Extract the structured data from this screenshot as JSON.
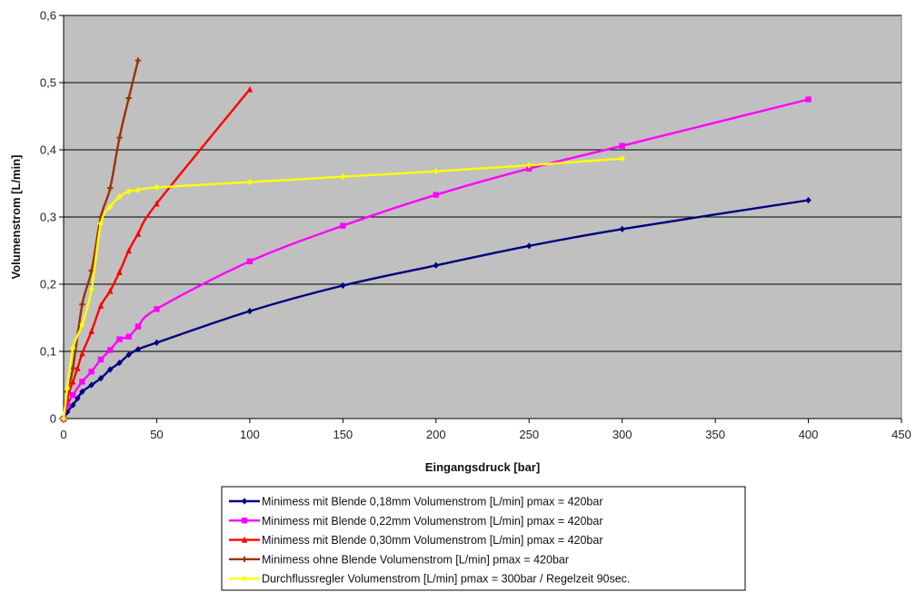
{
  "chart_data": {
    "type": "line",
    "xlabel": "Eingangsdruck [bar]",
    "ylabel": "Volumenstrom [L/min]",
    "xlim": [
      0,
      450
    ],
    "ylim": [
      0,
      0.6
    ],
    "xticks": [
      0,
      50,
      100,
      150,
      200,
      250,
      300,
      350,
      400,
      450
    ],
    "xtick_labels": [
      "0",
      "50",
      "100",
      "150",
      "200",
      "250",
      "300",
      "350",
      "400",
      "450"
    ],
    "yticks": [
      0,
      0.1,
      0.2,
      0.3,
      0.4,
      0.5,
      0.6
    ],
    "ytick_labels": [
      "0",
      "0,1",
      "0,2",
      "0,3",
      "0,4",
      "0,5",
      "0,6"
    ],
    "grid": "horizontal",
    "plot_background": "#c0c0c0",
    "legend_position": "bottom",
    "series": [
      {
        "name": "Minimess mit Blende 0,18mm Volumenstrom [L/min] pmax = 420bar",
        "color": "#000080",
        "marker": "diamond",
        "points": [
          [
            0,
            0
          ],
          [
            2,
            0.01
          ],
          [
            5,
            0.02
          ],
          [
            7.5,
            0.03
          ],
          [
            10,
            0.04
          ],
          [
            15,
            0.05
          ],
          [
            20,
            0.06
          ],
          [
            25,
            0.073
          ],
          [
            30,
            0.083
          ],
          [
            35,
            0.095
          ],
          [
            40,
            0.103
          ],
          [
            50,
            0.113
          ],
          [
            100,
            0.16
          ],
          [
            150,
            0.198
          ],
          [
            200,
            0.228
          ],
          [
            250,
            0.257
          ],
          [
            300,
            0.282
          ],
          [
            400,
            0.325
          ]
        ]
      },
      {
        "name": "Minimess mit Blende 0,22mm Volumenstrom [L/min] pmax = 420bar",
        "color": "#ff00ff",
        "marker": "square",
        "points": [
          [
            0,
            0
          ],
          [
            2,
            0.02
          ],
          [
            5,
            0.035
          ],
          [
            10,
            0.055
          ],
          [
            15,
            0.07
          ],
          [
            20,
            0.088
          ],
          [
            25,
            0.102
          ],
          [
            30,
            0.118
          ],
          [
            35,
            0.122
          ],
          [
            40,
            0.137
          ],
          [
            50,
            0.163
          ],
          [
            100,
            0.234
          ],
          [
            150,
            0.287
          ],
          [
            200,
            0.333
          ],
          [
            250,
            0.372
          ],
          [
            300,
            0.406
          ],
          [
            400,
            0.475
          ]
        ]
      },
      {
        "name": "Minimess mit Blende 0,30mm Volumenstrom [L/min] pmax = 420bar",
        "color": "#ff0000",
        "marker": "triangle",
        "points": [
          [
            0,
            0
          ],
          [
            2,
            0.03
          ],
          [
            5,
            0.055
          ],
          [
            7.5,
            0.075
          ],
          [
            10,
            0.097
          ],
          [
            15,
            0.13
          ],
          [
            20,
            0.168
          ],
          [
            25,
            0.19
          ],
          [
            30,
            0.218
          ],
          [
            35,
            0.25
          ],
          [
            40,
            0.275
          ],
          [
            50,
            0.32
          ],
          [
            100,
            0.49
          ]
        ]
      },
      {
        "name": "Minimess ohne Blende Volumenstrom [L/min] pmax = 420bar",
        "color": "#993300",
        "marker": "plus",
        "points": [
          [
            0,
            0
          ],
          [
            2,
            0.04
          ],
          [
            5,
            0.075
          ],
          [
            10,
            0.17
          ],
          [
            15,
            0.22
          ],
          [
            20,
            0.3
          ],
          [
            25,
            0.343
          ],
          [
            30,
            0.418
          ],
          [
            35,
            0.477
          ],
          [
            40,
            0.533
          ]
        ]
      },
      {
        "name": "Durchflussregler Volumenstrom [L/min] pmax = 300bar / Regelzeit 90sec.",
        "color": "#ffff00",
        "marker": "diamond",
        "points": [
          [
            0,
            0
          ],
          [
            2,
            0.045
          ],
          [
            5,
            0.105
          ],
          [
            10,
            0.14
          ],
          [
            15,
            0.192
          ],
          [
            20,
            0.29
          ],
          [
            25,
            0.315
          ],
          [
            30,
            0.33
          ],
          [
            35,
            0.338
          ],
          [
            40,
            0.34
          ],
          [
            50,
            0.344
          ],
          [
            100,
            0.352
          ],
          [
            150,
            0.36
          ],
          [
            200,
            0.368
          ],
          [
            250,
            0.377
          ],
          [
            300,
            0.387
          ]
        ]
      }
    ]
  }
}
